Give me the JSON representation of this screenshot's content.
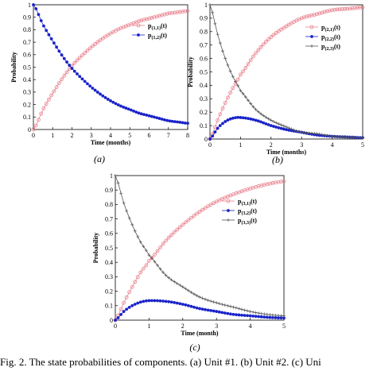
{
  "caption": "Fig. 2.   The state probabilities of components. (a) Unit #1. (b) Unit #2. (c) Uni",
  "chart_data": [
    {
      "type": "line",
      "panel_label": "(a)",
      "xlabel": "Time (months)",
      "ylabel": "Probability",
      "xlim": [
        0,
        8
      ],
      "ylim": [
        0,
        1
      ],
      "xticks": [
        "0",
        "1",
        "2",
        "3",
        "4",
        "5",
        "6",
        "7",
        "8"
      ],
      "yticks": [
        "0",
        "0.1",
        "0.2",
        "0.3",
        "0.4",
        "0.5",
        "0.6",
        "0.7",
        "0.8",
        "0.9",
        "1"
      ],
      "legend_position": "top-right",
      "series": [
        {
          "name": "p(1,1)(t)",
          "legend_main": "p",
          "legend_sub": "(1,1)",
          "legend_tail": "(t)",
          "color": "#e8838f",
          "marker": "circle-open",
          "x": [
            0,
            0.5,
            1,
            1.5,
            2,
            2.5,
            3,
            3.5,
            4,
            4.5,
            5,
            5.5,
            6,
            6.5,
            7,
            7.5,
            8
          ],
          "y": [
            0,
            0.16,
            0.29,
            0.41,
            0.51,
            0.59,
            0.66,
            0.72,
            0.77,
            0.81,
            0.84,
            0.87,
            0.89,
            0.91,
            0.93,
            0.94,
            0.95
          ]
        },
        {
          "name": "p(1,2)(t)",
          "legend_main": "p",
          "legend_sub": "(1,2)",
          "legend_tail": "(t)",
          "color": "#1a23c8",
          "marker": "dot",
          "x": [
            0,
            0.5,
            1,
            1.5,
            2,
            2.5,
            3,
            3.5,
            4,
            4.5,
            5,
            5.5,
            6,
            6.5,
            7,
            7.5,
            8
          ],
          "y": [
            1,
            0.84,
            0.71,
            0.59,
            0.49,
            0.41,
            0.34,
            0.28,
            0.23,
            0.19,
            0.16,
            0.13,
            0.11,
            0.09,
            0.07,
            0.06,
            0.05
          ]
        }
      ]
    },
    {
      "type": "line",
      "panel_label": "(b)",
      "xlabel": "Time (months)",
      "ylabel": "Probability",
      "xlim": [
        0,
        5
      ],
      "ylim": [
        0,
        1
      ],
      "xticks": [
        "0",
        "1",
        "2",
        "3",
        "4",
        "5"
      ],
      "yticks": [
        "0",
        "0.1",
        "0.2",
        "0.3",
        "0.4",
        "0.5",
        "0.6",
        "0.7",
        "0.8",
        "0.9",
        "1"
      ],
      "legend_position": "top-right",
      "series": [
        {
          "name": "p(2,1)(t)",
          "legend_main": "p",
          "legend_sub": "(2,1)",
          "legend_tail": "(t)",
          "color": "#e8838f",
          "marker": "circle-open",
          "x": [
            0,
            0.25,
            0.5,
            0.75,
            1,
            1.5,
            2,
            2.5,
            3,
            3.5,
            4,
            4.5,
            5
          ],
          "y": [
            0,
            0.14,
            0.27,
            0.38,
            0.48,
            0.64,
            0.76,
            0.84,
            0.9,
            0.93,
            0.96,
            0.97,
            0.98
          ]
        },
        {
          "name": "p(2,2)(t)",
          "legend_main": "p",
          "legend_sub": "(2,2)",
          "legend_tail": "(t)",
          "color": "#1a23c8",
          "marker": "dot",
          "x": [
            0,
            0.25,
            0.5,
            0.75,
            1,
            1.5,
            2,
            2.5,
            3,
            3.5,
            4,
            4.5,
            5
          ],
          "y": [
            0,
            0.08,
            0.13,
            0.155,
            0.16,
            0.14,
            0.1,
            0.07,
            0.05,
            0.03,
            0.02,
            0.015,
            0.01
          ]
        },
        {
          "name": "p(2,3)(t)",
          "legend_main": "p",
          "legend_sub": "(2,3)",
          "legend_tail": "(t)",
          "color": "#555555",
          "marker": "plus",
          "x": [
            0,
            0.25,
            0.5,
            0.75,
            1,
            1.5,
            2,
            2.5,
            3,
            3.5,
            4,
            4.5,
            5
          ],
          "y": [
            1,
            0.78,
            0.6,
            0.465,
            0.36,
            0.22,
            0.14,
            0.09,
            0.05,
            0.04,
            0.02,
            0.015,
            0.01
          ]
        }
      ]
    },
    {
      "type": "line",
      "panel_label": "(c)",
      "xlabel": "Time (month)",
      "ylabel": "Probability",
      "xlim": [
        0,
        5
      ],
      "ylim": [
        0,
        1
      ],
      "xticks": [
        "0",
        "1",
        "2",
        "3",
        "4",
        "5"
      ],
      "yticks": [
        "0",
        "0.1",
        "0.2",
        "0.3",
        "0.4",
        "0.5",
        "0.6",
        "0.7",
        "0.8",
        "0.9",
        "1"
      ],
      "legend_position": "top-right",
      "series": [
        {
          "name": "p(3,1)(t)",
          "legend_main": "p",
          "legend_sub": "(3,1)",
          "legend_tail": "(t)",
          "color": "#e8838f",
          "marker": "circle-open",
          "x": [
            0,
            0.25,
            0.5,
            0.75,
            1,
            1.5,
            2,
            2.5,
            3,
            3.5,
            4,
            4.5,
            5
          ],
          "y": [
            0,
            0.12,
            0.23,
            0.33,
            0.41,
            0.55,
            0.66,
            0.75,
            0.82,
            0.87,
            0.91,
            0.94,
            0.96
          ]
        },
        {
          "name": "p(3,2)(t)",
          "legend_main": "p",
          "legend_sub": "(3,2)",
          "legend_tail": "(t)",
          "color": "#1a23c8",
          "marker": "dot",
          "x": [
            0,
            0.25,
            0.5,
            0.75,
            1,
            1.5,
            2,
            2.5,
            3,
            3.5,
            4,
            4.5,
            5
          ],
          "y": [
            0,
            0.06,
            0.1,
            0.125,
            0.135,
            0.13,
            0.11,
            0.08,
            0.06,
            0.04,
            0.03,
            0.02,
            0.015
          ]
        },
        {
          "name": "p(3,3)(t)",
          "legend_main": "p",
          "legend_sub": "(3,3)",
          "legend_tail": "(t)",
          "color": "#555555",
          "marker": "plus",
          "x": [
            0,
            0.25,
            0.5,
            0.75,
            1,
            1.5,
            2,
            2.5,
            3,
            3.5,
            4,
            4.5,
            5
          ],
          "y": [
            1,
            0.81,
            0.66,
            0.54,
            0.45,
            0.31,
            0.23,
            0.16,
            0.12,
            0.09,
            0.06,
            0.04,
            0.03
          ]
        }
      ]
    }
  ]
}
